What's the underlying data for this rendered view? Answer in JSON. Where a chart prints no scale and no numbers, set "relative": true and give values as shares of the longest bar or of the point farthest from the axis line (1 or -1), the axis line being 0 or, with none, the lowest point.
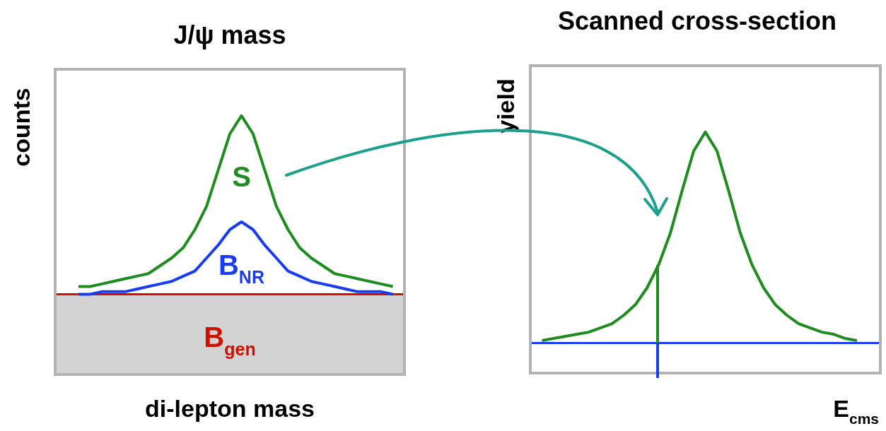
{
  "chart_data": [
    {
      "type": "line",
      "title": "J/ψ mass",
      "xlabel": "di-lepton mass",
      "ylabel": "counts",
      "relative": true,
      "tick_labels": false,
      "categories": [
        null,
        null,
        null,
        null,
        null,
        null,
        null,
        null,
        null,
        null,
        null,
        null,
        null,
        null,
        null,
        null,
        null,
        null,
        null,
        null,
        null,
        null,
        null,
        null,
        null,
        null,
        null,
        null,
        null,
        null,
        null
      ],
      "series": [
        {
          "name": "S",
          "color": "#1e8c1e",
          "values": [
            null,
            null,
            0.34,
            0.34,
            0.35,
            0.36,
            0.37,
            0.38,
            0.39,
            0.42,
            0.45,
            0.49,
            0.56,
            0.65,
            0.79,
            0.93,
            1.0,
            0.93,
            0.79,
            0.65,
            0.56,
            0.49,
            0.45,
            0.42,
            0.39,
            0.38,
            0.37,
            0.36,
            0.35,
            0.34,
            null
          ]
        },
        {
          "name": "B$_{NR}$",
          "color": "#1a3cf0",
          "values": [
            null,
            null,
            0.31,
            0.31,
            0.32,
            0.32,
            0.32,
            0.33,
            0.34,
            0.35,
            0.36,
            0.38,
            0.4,
            0.45,
            0.5,
            0.56,
            0.59,
            0.56,
            0.5,
            0.45,
            0.4,
            0.38,
            0.36,
            0.35,
            0.34,
            0.33,
            0.32,
            0.32,
            0.32,
            0.31,
            null
          ]
        },
        {
          "name": "B$_{gen}$",
          "type": "area",
          "color": "#cc1100",
          "values": [
            0.31,
            0.31,
            0.31,
            0.31,
            0.31,
            0.31,
            0.31,
            0.31,
            0.31,
            0.31,
            0.31,
            0.31,
            0.31,
            0.31,
            0.31,
            0.31,
            0.31,
            0.31,
            0.31,
            0.31,
            0.31,
            0.31,
            0.31,
            0.31,
            0.31,
            0.31,
            0.31,
            0.31,
            0.31,
            0.31,
            0.31
          ]
        }
      ]
    },
    {
      "type": "line",
      "title": "Scanned cross-section",
      "xlabel": "E$_{cms}$",
      "ylabel": "yield",
      "relative": true,
      "tick_labels": false,
      "categories": [
        null,
        null,
        null,
        null,
        null,
        null,
        null,
        null,
        null,
        null,
        null,
        null,
        null,
        null,
        null,
        null,
        null,
        null,
        null,
        null,
        null,
        null,
        null,
        null,
        null,
        null,
        null,
        null,
        null,
        null,
        null
      ],
      "series": [
        {
          "color": "#1e8c1e",
          "values": [
            null,
            0.01,
            0.02,
            0.03,
            0.04,
            0.05,
            0.07,
            0.09,
            0.13,
            0.18,
            0.26,
            0.37,
            0.52,
            0.72,
            0.91,
            1.0,
            0.91,
            0.72,
            0.52,
            0.37,
            0.26,
            0.18,
            0.13,
            0.09,
            0.07,
            0.05,
            0.04,
            0.02,
            0.01,
            null,
            null
          ]
        }
      ]
    }
  ]
}
